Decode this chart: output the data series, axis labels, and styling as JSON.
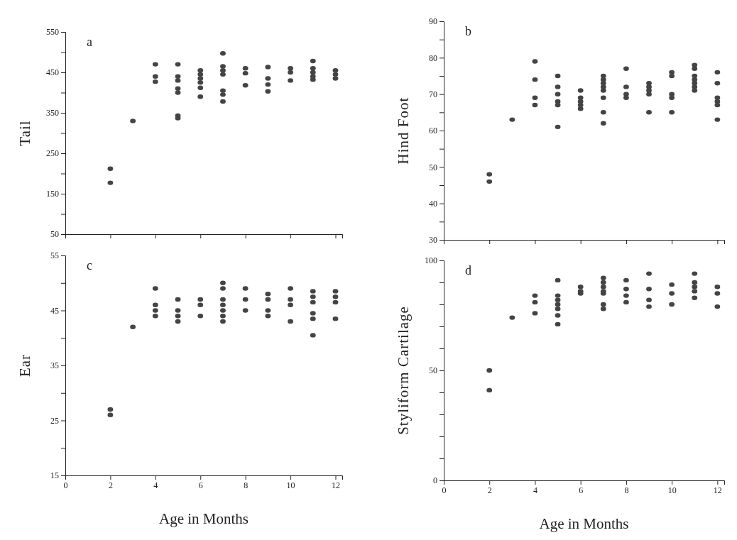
{
  "chart_data": [
    {
      "type": "scatter",
      "ylabel": "Tail",
      "annotations": [
        "a"
      ],
      "marker": "circle",
      "tick_labels": "y",
      "xlim": [
        0,
        12.3
      ],
      "xticks": [
        {
          "value": 0,
          "label": null
        },
        {
          "value": 2,
          "label": null
        },
        {
          "value": 4,
          "label": null
        },
        {
          "value": 6,
          "label": null
        },
        {
          "value": 8,
          "label": null
        },
        {
          "value": 10,
          "label": null
        },
        {
          "value": 12,
          "label": null
        }
      ],
      "ylim": [
        50,
        550
      ],
      "yticks": [
        50,
        {
          "value": 100,
          "label": null
        },
        150,
        {
          "value": 200,
          "label": null
        },
        250,
        {
          "value": 300,
          "label": null
        },
        350,
        {
          "value": 400,
          "label": null
        },
        450,
        {
          "value": 500,
          "label": null
        },
        550
      ],
      "series": [
        {
          "color": "#444444",
          "x": [
            2,
            2,
            3,
            4,
            4,
            4,
            5,
            5,
            5,
            5,
            5,
            5,
            5,
            6,
            6,
            6,
            6,
            6,
            6,
            7,
            7,
            7,
            7,
            7,
            7,
            7,
            8,
            8,
            8,
            9,
            9,
            9,
            9,
            10,
            10,
            10,
            11,
            11,
            11,
            11,
            11,
            12,
            12,
            12
          ],
          "values": [
            212,
            177,
            330,
            470,
            440,
            427,
            470,
            440,
            430,
            410,
            400,
            343,
            337,
            455,
            445,
            435,
            425,
            412,
            390,
            497,
            465,
            455,
            445,
            405,
            395,
            378,
            460,
            448,
            418,
            463,
            435,
            420,
            403,
            460,
            450,
            430,
            478,
            460,
            450,
            440,
            432,
            455,
            445,
            435
          ]
        }
      ]
    },
    {
      "type": "scatter",
      "ylabel": "Hind Foot",
      "annotations": [
        "b"
      ],
      "marker": "circle",
      "tick_labels": "y",
      "xlim": [
        0,
        12.3
      ],
      "xticks": [
        {
          "value": 0,
          "label": null
        },
        {
          "value": 2,
          "label": null
        },
        {
          "value": 4,
          "label": null
        },
        {
          "value": 6,
          "label": null
        },
        {
          "value": 8,
          "label": null
        },
        {
          "value": 10,
          "label": null
        },
        {
          "value": 12,
          "label": null
        }
      ],
      "ylim": [
        30,
        90
      ],
      "yticks": [
        30,
        {
          "value": 35,
          "label": null
        },
        40,
        {
          "value": 45,
          "label": null
        },
        50,
        {
          "value": 55,
          "label": null
        },
        60,
        {
          "value": 65,
          "label": null
        },
        70,
        {
          "value": 75,
          "label": null
        },
        80,
        {
          "value": 85,
          "label": null
        },
        90
      ],
      "series": [
        {
          "color": "#444444",
          "x": [
            2,
            2,
            3,
            4,
            4,
            4,
            4,
            5,
            5,
            5,
            5,
            5,
            5,
            6,
            6,
            6,
            6,
            6,
            7,
            7,
            7,
            7,
            7,
            7,
            7,
            7,
            8,
            8,
            8,
            8,
            9,
            9,
            9,
            9,
            9,
            10,
            10,
            10,
            10,
            10,
            11,
            11,
            11,
            11,
            11,
            11,
            11,
            12,
            12,
            12,
            12,
            12,
            12
          ],
          "values": [
            48,
            46,
            63,
            79,
            74,
            69,
            67,
            75,
            72,
            70,
            68,
            67,
            61,
            71,
            69,
            68,
            67,
            66,
            75,
            74,
            73,
            72,
            71,
            69,
            65,
            62,
            77,
            72,
            70,
            69,
            73,
            72,
            71,
            70,
            65,
            76,
            75,
            70,
            69,
            65,
            78,
            77,
            75,
            74,
            73,
            72,
            71,
            76,
            73,
            69,
            68,
            67,
            63
          ]
        }
      ]
    },
    {
      "type": "scatter",
      "ylabel": "Ear",
      "xlabel": "Age in Months",
      "annotations": [
        "c"
      ],
      "marker": "circle",
      "xlim": [
        0,
        12.3
      ],
      "xticks": [
        0,
        2,
        4,
        6,
        8,
        10,
        12
      ],
      "ylim": [
        15,
        55
      ],
      "yticks": [
        15,
        {
          "value": 20,
          "label": null
        },
        25,
        {
          "value": 30,
          "label": null
        },
        35,
        {
          "value": 40,
          "label": null
        },
        45,
        {
          "value": 50,
          "label": null
        },
        55
      ],
      "series": [
        {
          "color": "#444444",
          "x": [
            2,
            2,
            3,
            4,
            4,
            4,
            4,
            5,
            5,
            5,
            5,
            6,
            6,
            6,
            7,
            7,
            7,
            7,
            7,
            7,
            7,
            8,
            8,
            8,
            9,
            9,
            9,
            9,
            10,
            10,
            10,
            10,
            11,
            11,
            11,
            11,
            11,
            11,
            12,
            12,
            12,
            12
          ],
          "values": [
            27,
            26,
            42,
            49,
            46,
            45,
            44,
            47,
            45,
            44,
            43,
            47,
            46,
            44,
            50,
            49,
            47,
            46,
            45,
            44,
            43,
            49,
            47,
            45,
            48,
            47,
            45,
            44,
            49,
            47,
            46,
            43,
            48.5,
            47.5,
            46.5,
            44.5,
            43.5,
            40.5,
            48.5,
            47.5,
            46.5,
            43.5
          ]
        }
      ]
    },
    {
      "type": "scatter",
      "ylabel": "Styliform Cartilage",
      "xlabel": "Age in Months",
      "annotations": [
        "d"
      ],
      "marker": "circle",
      "xlim": [
        0,
        12.3
      ],
      "xticks": [
        0,
        2,
        4,
        6,
        8,
        10,
        12
      ],
      "ylim": [
        0,
        100
      ],
      "yticks": [
        0,
        {
          "value": 10,
          "label": null
        },
        {
          "value": 20,
          "label": null
        },
        {
          "value": 30,
          "label": null
        },
        {
          "value": 40,
          "label": null
        },
        50,
        {
          "value": 60,
          "label": null
        },
        {
          "value": 70,
          "label": null
        },
        {
          "value": 80,
          "label": null
        },
        {
          "value": 90,
          "label": null
        },
        100
      ],
      "series": [
        {
          "color": "#444444",
          "x": [
            2,
            2,
            3,
            4,
            4,
            4,
            5,
            5,
            5,
            5,
            5,
            5,
            5,
            6,
            6,
            6,
            7,
            7,
            7,
            7,
            7,
            7,
            7,
            8,
            8,
            8,
            8,
            9,
            9,
            9,
            9,
            10,
            10,
            10,
            11,
            11,
            11,
            11,
            11,
            12,
            12,
            12
          ],
          "values": [
            50,
            41,
            74,
            84,
            81,
            76,
            91,
            84,
            82,
            80,
            78,
            75,
            71,
            88,
            86,
            85,
            92,
            90,
            88,
            86,
            85,
            80,
            78,
            91,
            87,
            84,
            81,
            94,
            87,
            82,
            79,
            89,
            85,
            80,
            94,
            90,
            88,
            86,
            83,
            88,
            85,
            79
          ]
        }
      ]
    }
  ]
}
